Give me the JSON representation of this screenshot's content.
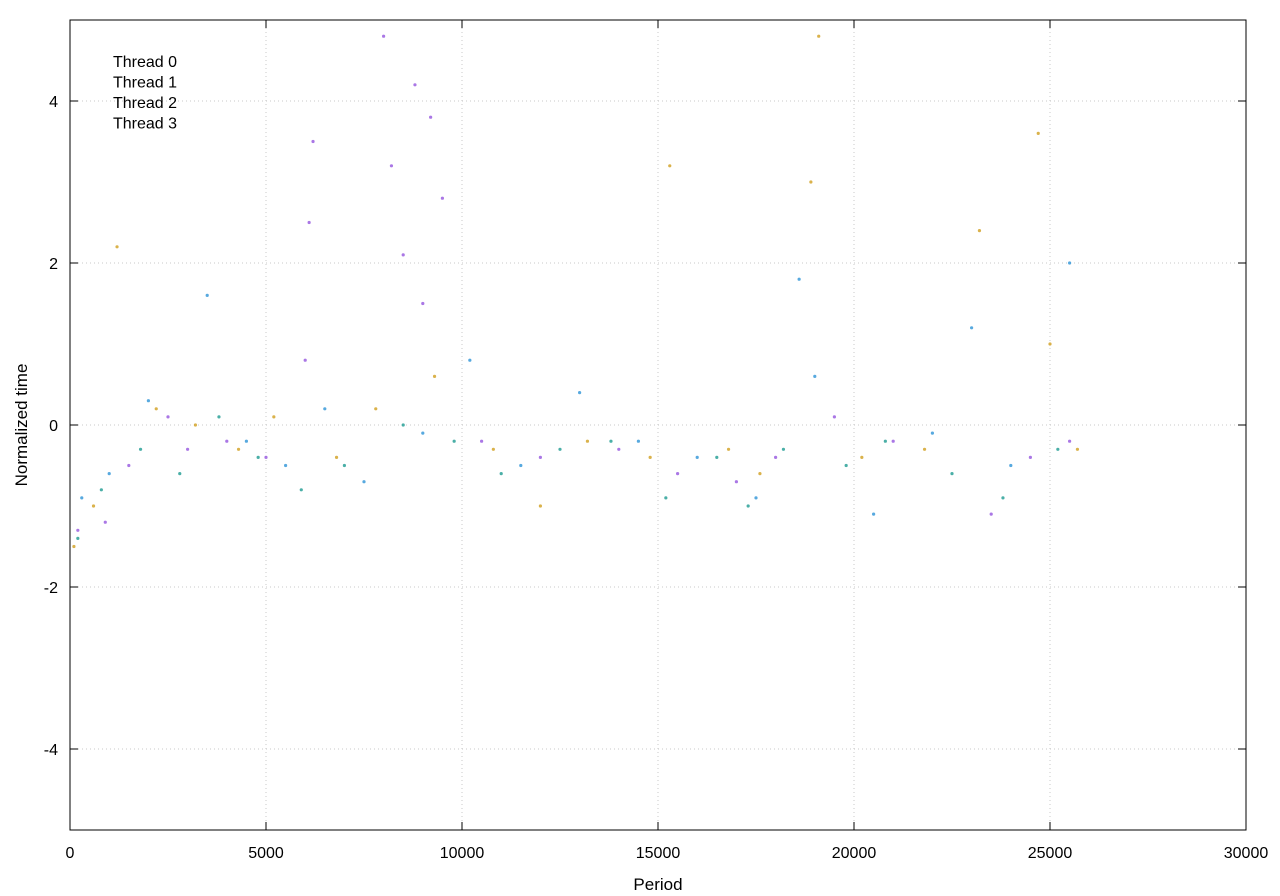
{
  "chart_data": {
    "type": "scatter",
    "title": "",
    "xlabel": "Period",
    "ylabel": "Normalized time",
    "xlim": [
      0,
      30000
    ],
    "ylim": [
      -5,
      5
    ],
    "xticks": [
      0,
      5000,
      10000,
      15000,
      20000,
      25000,
      30000
    ],
    "yticks": [
      -4,
      -2,
      0,
      2,
      4
    ],
    "grid": true,
    "legend_position": "top-left",
    "series": [
      {
        "name": "Thread 0",
        "color": "#9b5fe0",
        "sample_points": [
          [
            200,
            -1.3
          ],
          [
            900,
            -1.2
          ],
          [
            1500,
            -0.5
          ],
          [
            2500,
            0.1
          ],
          [
            3000,
            -0.3
          ],
          [
            4000,
            -0.2
          ],
          [
            5000,
            -0.4
          ],
          [
            6000,
            0.8
          ],
          [
            6100,
            2.5
          ],
          [
            6200,
            3.5
          ],
          [
            8000,
            4.8
          ],
          [
            8200,
            3.2
          ],
          [
            8500,
            2.1
          ],
          [
            8800,
            4.2
          ],
          [
            9000,
            1.5
          ],
          [
            9200,
            3.8
          ],
          [
            9500,
            2.8
          ],
          [
            10500,
            -0.2
          ],
          [
            12000,
            -0.4
          ],
          [
            14000,
            -0.3
          ],
          [
            15500,
            -0.6
          ],
          [
            17000,
            -0.7
          ],
          [
            18000,
            -0.4
          ],
          [
            19500,
            0.1
          ],
          [
            21000,
            -0.2
          ],
          [
            23500,
            -1.1
          ],
          [
            24500,
            -0.4
          ],
          [
            25500,
            -0.2
          ]
        ]
      },
      {
        "name": "Thread 1",
        "color": "#3a9ad9",
        "sample_points": [
          [
            300,
            -0.9
          ],
          [
            1000,
            -0.6
          ],
          [
            2000,
            0.3
          ],
          [
            3500,
            1.6
          ],
          [
            4500,
            -0.2
          ],
          [
            5500,
            -0.5
          ],
          [
            6500,
            0.2
          ],
          [
            7500,
            -0.7
          ],
          [
            9000,
            -0.1
          ],
          [
            10200,
            0.8
          ],
          [
            11500,
            -0.5
          ],
          [
            13000,
            0.4
          ],
          [
            14500,
            -0.2
          ],
          [
            16000,
            -0.4
          ],
          [
            17500,
            -0.9
          ],
          [
            18600,
            1.8
          ],
          [
            19000,
            0.6
          ],
          [
            20500,
            -1.1
          ],
          [
            22000,
            -0.1
          ],
          [
            23000,
            1.2
          ],
          [
            24000,
            -0.5
          ],
          [
            25500,
            2.0
          ]
        ]
      },
      {
        "name": "Thread 2",
        "color": "#2aa198",
        "sample_points": [
          [
            200,
            -1.4
          ],
          [
            800,
            -0.8
          ],
          [
            1800,
            -0.3
          ],
          [
            2800,
            -0.6
          ],
          [
            3800,
            0.1
          ],
          [
            4800,
            -0.4
          ],
          [
            5900,
            -0.8
          ],
          [
            7000,
            -0.5
          ],
          [
            8500,
            0.0
          ],
          [
            9800,
            -0.2
          ],
          [
            11000,
            -0.6
          ],
          [
            12500,
            -0.3
          ],
          [
            13800,
            -0.2
          ],
          [
            15200,
            -0.9
          ],
          [
            16500,
            -0.4
          ],
          [
            17300,
            -1.0
          ],
          [
            18200,
            -0.3
          ],
          [
            19800,
            -0.5
          ],
          [
            20800,
            -0.2
          ],
          [
            22500,
            -0.6
          ],
          [
            23800,
            -0.9
          ],
          [
            25200,
            -0.3
          ]
        ]
      },
      {
        "name": "Thread 3",
        "color": "#d4a52c",
        "sample_points": [
          [
            100,
            -1.5
          ],
          [
            600,
            -1.0
          ],
          [
            1200,
            2.2
          ],
          [
            2200,
            0.2
          ],
          [
            3200,
            0.0
          ],
          [
            4300,
            -0.3
          ],
          [
            5200,
            0.1
          ],
          [
            6800,
            -0.4
          ],
          [
            7800,
            0.2
          ],
          [
            9300,
            0.6
          ],
          [
            10800,
            -0.3
          ],
          [
            12000,
            -1.0
          ],
          [
            13200,
            -0.2
          ],
          [
            14800,
            -0.4
          ],
          [
            15300,
            3.2
          ],
          [
            16800,
            -0.3
          ],
          [
            17600,
            -0.6
          ],
          [
            18900,
            3.0
          ],
          [
            19100,
            4.8
          ],
          [
            20200,
            -0.4
          ],
          [
            21800,
            -0.3
          ],
          [
            23200,
            2.4
          ],
          [
            24700,
            3.6
          ],
          [
            25000,
            1.0
          ],
          [
            25700,
            -0.3
          ]
        ]
      }
    ]
  }
}
